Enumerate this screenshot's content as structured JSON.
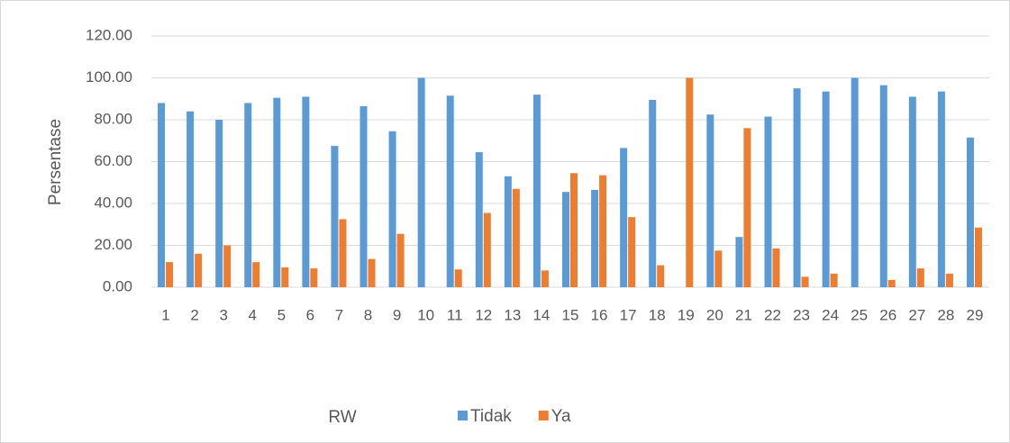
{
  "chart_data": {
    "type": "bar",
    "categories": [
      "1",
      "2",
      "3",
      "4",
      "5",
      "6",
      "7",
      "8",
      "9",
      "10",
      "11",
      "12",
      "13",
      "14",
      "15",
      "16",
      "17",
      "18",
      "19",
      "20",
      "21",
      "22",
      "23",
      "24",
      "25",
      "26",
      "27",
      "28",
      "29"
    ],
    "series": [
      {
        "name": "Tidak",
        "color": "#5b9bd5",
        "values": [
          88,
          84,
          80,
          88,
          90.5,
          91,
          67.5,
          86.5,
          74.5,
          100,
          91.5,
          64.5,
          53,
          92,
          45.5,
          46.5,
          66.5,
          89.5,
          0,
          82.5,
          24,
          81.5,
          95,
          93.5,
          100,
          96.5,
          91,
          93.5,
          71.5
        ]
      },
      {
        "name": "Ya",
        "color": "#ed7d31",
        "values": [
          12,
          16,
          20,
          12,
          9.5,
          9,
          32.5,
          13.5,
          25.5,
          0,
          8.5,
          35.5,
          47,
          8,
          54.5,
          53.5,
          33.5,
          10.5,
          100,
          17.5,
          76,
          18.5,
          5,
          6.5,
          0,
          3.5,
          9,
          6.5,
          28.5
        ]
      }
    ],
    "y_label": "Persentase",
    "x_label": "RW",
    "ylim": [
      0,
      120
    ],
    "yticks": [
      {
        "value": 0,
        "label": "0.00"
      },
      {
        "value": 20,
        "label": "20.00"
      },
      {
        "value": 40,
        "label": "40.00"
      },
      {
        "value": 60,
        "label": "60.00"
      },
      {
        "value": 80,
        "label": "80.00"
      },
      {
        "value": 100,
        "label": "100.00"
      },
      {
        "value": 120,
        "label": "120.00"
      }
    ],
    "grid": true,
    "legend": "bottom"
  }
}
